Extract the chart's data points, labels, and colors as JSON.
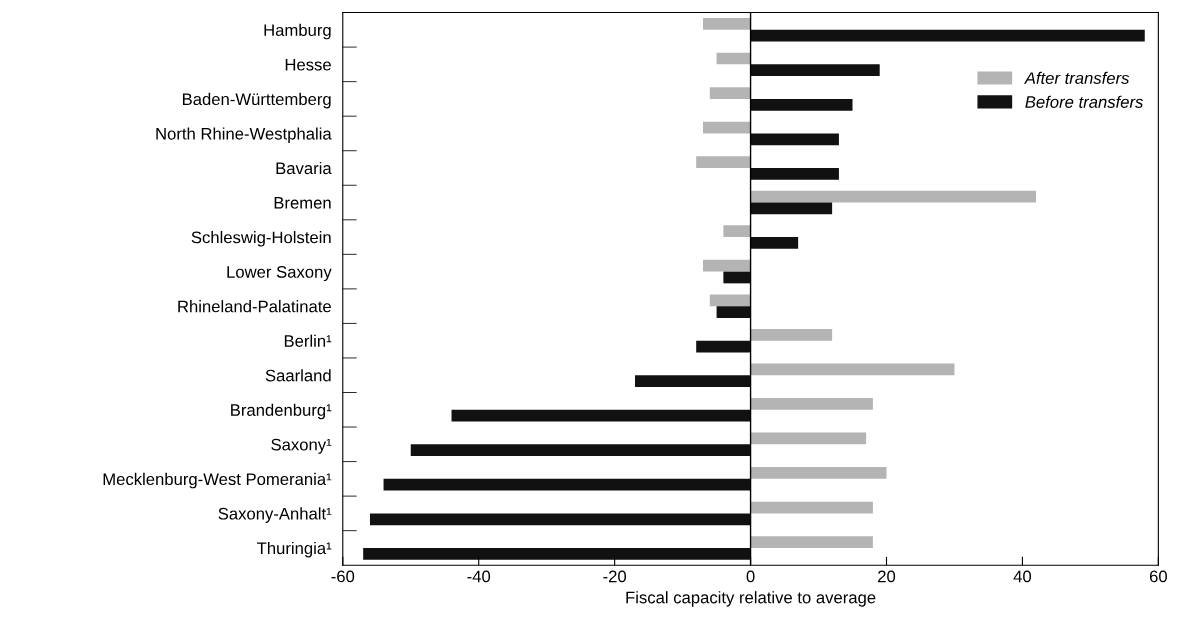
{
  "chart_data": {
    "type": "bar",
    "orientation": "horizontal",
    "xlabel": "Fiscal capacity relative to average",
    "categories": [
      "Hamburg",
      "Hesse",
      "Baden-Württemberg",
      "North Rhine-Westphalia",
      "Bavaria",
      "Bremen",
      "Schleswig-Holstein",
      "Lower Saxony",
      "Rhineland-Palatinate",
      "Berlin¹",
      "Saarland",
      "Brandenburg¹",
      "Saxony¹",
      "Mecklenburg-West Pomerania¹",
      "Saxony-Anhalt¹",
      "Thuringia¹"
    ],
    "series": [
      {
        "name": "After transfers",
        "color": "#b4b4b4",
        "values": [
          -7,
          -5,
          -6,
          -7,
          -8,
          42,
          -4,
          -7,
          -6,
          12,
          30,
          18,
          17,
          20,
          18,
          18
        ]
      },
      {
        "name": "Before transfers",
        "color": "#111111",
        "values": [
          58,
          19,
          15,
          13,
          13,
          12,
          7,
          -4,
          -5,
          -8,
          -17,
          -44,
          -50,
          -54,
          -56,
          -57
        ]
      }
    ],
    "xlim": [
      -60,
      60
    ],
    "xticks": [
      -60,
      -40,
      -20,
      0,
      20,
      40,
      60
    ],
    "legend": "top right",
    "ref_lines": [
      {
        "axis": "x",
        "value": 0,
        "color": "#000000"
      }
    ]
  }
}
